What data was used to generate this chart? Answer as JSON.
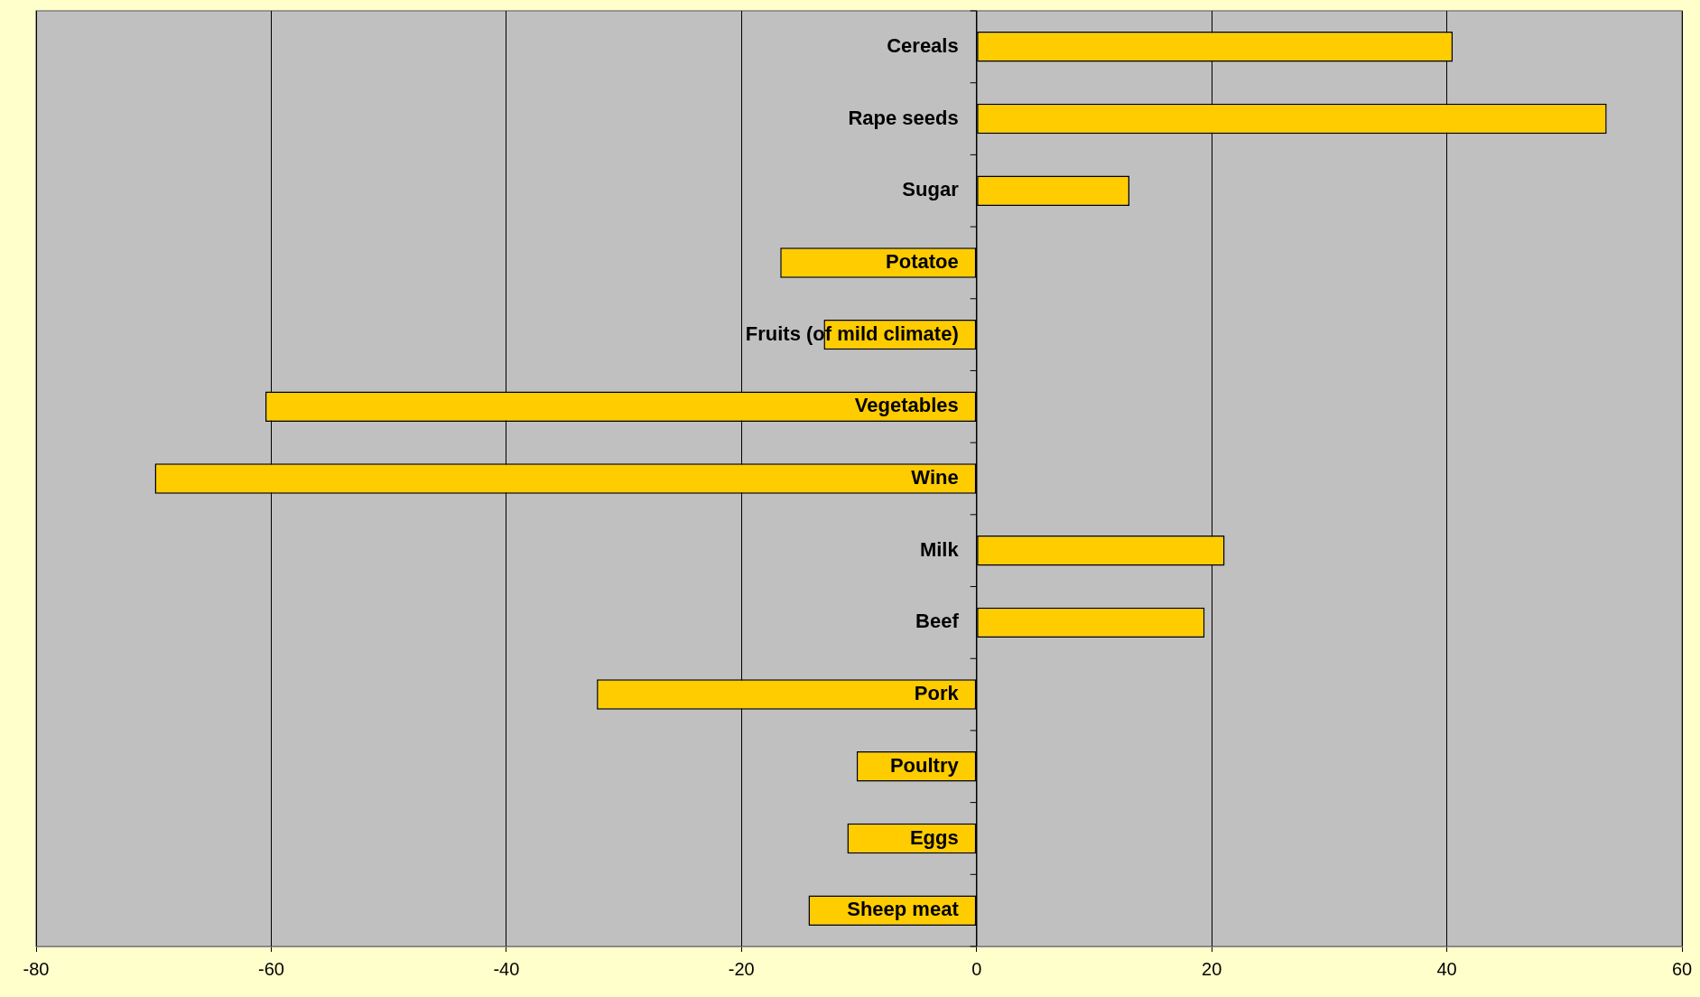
{
  "chart_data": {
    "type": "bar",
    "orientation": "horizontal",
    "categories": [
      "Cereals",
      "Rape seeds",
      "Sugar",
      "Potatoe",
      "Fruits (of mild climate)",
      "Vegetables",
      "Wine",
      "Milk",
      "Beef",
      "Pork",
      "Poultry",
      "Eggs",
      "Sheep meat"
    ],
    "values": [
      40.5,
      53.6,
      13.0,
      -16.7,
      -13.0,
      -60.5,
      -69.9,
      21.1,
      19.4,
      -32.3,
      -10.2,
      -11.0,
      -14.3
    ],
    "color": "#ffcc00",
    "xlim": [
      -80,
      60
    ],
    "xticks": [
      -80,
      -60,
      -40,
      -20,
      0,
      20,
      40,
      60
    ],
    "grid": "x",
    "legend": false
  }
}
